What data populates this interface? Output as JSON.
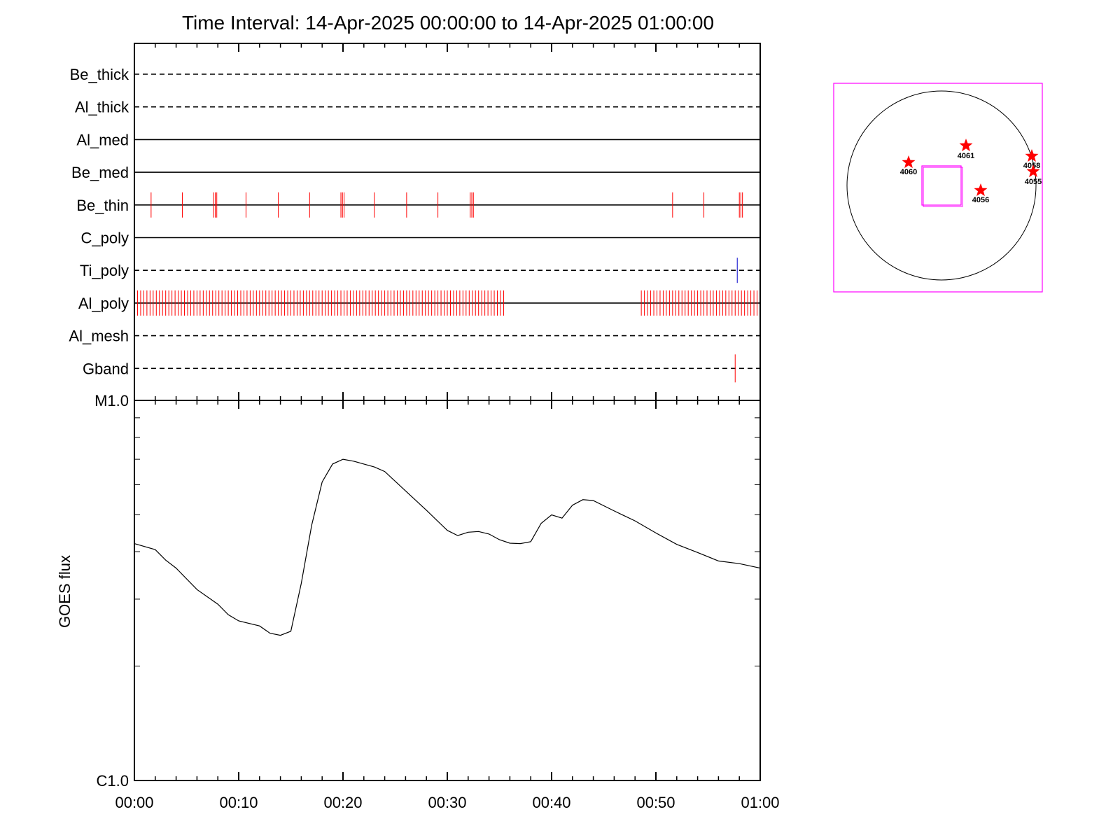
{
  "title": "Time Interval: 14-Apr-2025 00:00:00 to 14-Apr-2025 01:00:00",
  "chart_data": [
    {
      "type": "event-timeline",
      "x_range_minutes": [
        0,
        60
      ],
      "x_ticks": [
        "00:00",
        "00:10",
        "00:20",
        "00:30",
        "00:40",
        "00:50",
        "01:00"
      ],
      "rows": [
        {
          "label": "Be_thick",
          "style": "dashed",
          "events": [],
          "event_color": "#ff0000"
        },
        {
          "label": "Al_thick",
          "style": "dashed",
          "events": [],
          "event_color": "#ff0000"
        },
        {
          "label": "Al_med",
          "style": "solid",
          "events": [],
          "event_color": "#ff0000"
        },
        {
          "label": "Be_med",
          "style": "solid",
          "events": [],
          "event_color": "#ff0000"
        },
        {
          "label": "Be_thin",
          "style": "solid",
          "event_color": "#ff0000",
          "events": [
            1.6,
            4.6,
            7.6,
            7.75,
            7.9,
            10.7,
            13.8,
            16.8,
            19.8,
            19.95,
            20.1,
            23.0,
            26.1,
            29.1,
            32.2,
            32.35,
            32.5,
            51.6,
            54.6,
            58.0,
            58.15,
            58.3
          ]
        },
        {
          "label": "C_poly",
          "style": "solid",
          "events": [],
          "event_color": "#ff0000"
        },
        {
          "label": "Ti_poly",
          "style": "dashed",
          "event_color": "#0000cc",
          "events": [
            57.8
          ]
        },
        {
          "label": "Al_poly",
          "style": "solid",
          "event_color": "#ff0000",
          "events": [
            0.3,
            0.6,
            0.9,
            1.2,
            1.5,
            1.8,
            2.1,
            2.4,
            2.7,
            3.0,
            3.3,
            3.6,
            3.9,
            4.2,
            4.5,
            4.8,
            5.1,
            5.4,
            5.7,
            6.0,
            6.3,
            6.6,
            6.9,
            7.2,
            7.5,
            7.8,
            8.1,
            8.4,
            8.7,
            9.0,
            9.3,
            9.6,
            9.9,
            10.2,
            10.5,
            10.8,
            11.1,
            11.4,
            11.7,
            12.0,
            12.3,
            12.6,
            12.9,
            13.2,
            13.5,
            13.8,
            14.1,
            14.4,
            14.7,
            15.0,
            15.3,
            15.6,
            15.9,
            16.2,
            16.5,
            16.8,
            17.1,
            17.4,
            17.7,
            18.0,
            18.3,
            18.6,
            18.9,
            19.2,
            19.5,
            19.8,
            20.1,
            20.4,
            20.7,
            21.0,
            21.3,
            21.6,
            21.9,
            22.2,
            22.5,
            22.8,
            23.1,
            23.4,
            23.7,
            24.0,
            24.3,
            24.6,
            24.9,
            25.2,
            25.5,
            25.8,
            26.1,
            26.4,
            26.7,
            27.0,
            27.3,
            27.6,
            27.9,
            28.2,
            28.5,
            28.8,
            29.1,
            29.4,
            29.7,
            30.0,
            30.3,
            30.6,
            30.9,
            31.2,
            31.5,
            31.8,
            32.1,
            32.4,
            32.7,
            33.0,
            33.3,
            33.6,
            33.9,
            34.2,
            34.5,
            34.8,
            35.1,
            35.4,
            48.6,
            48.9,
            49.2,
            49.5,
            49.8,
            50.1,
            50.4,
            50.7,
            51.0,
            51.3,
            51.6,
            51.9,
            52.2,
            52.5,
            52.8,
            53.1,
            53.4,
            53.7,
            54.0,
            54.3,
            54.6,
            54.9,
            55.2,
            55.5,
            55.8,
            56.1,
            56.4,
            56.7,
            57.0,
            57.3,
            57.6,
            57.9,
            58.2,
            58.5,
            58.8,
            59.1,
            59.4,
            59.7
          ]
        },
        {
          "label": "Al_mesh",
          "style": "dashed",
          "events": [],
          "event_color": "#ff0000"
        },
        {
          "label": "Gband",
          "style": "dashed",
          "event_color": "#ff0000",
          "events": [
            57.6
          ]
        }
      ]
    },
    {
      "type": "line",
      "ylabel": "GOES flux",
      "y_scale": "log",
      "ylim": [
        1e-06,
        1e-05
      ],
      "y_tick_labels": [
        {
          "value": 1e-05,
          "label": "M1.0"
        },
        {
          "value": 1e-06,
          "label": "C1.0"
        }
      ],
      "x_range_minutes": [
        0,
        60
      ],
      "x_ticks": [
        "00:00",
        "00:10",
        "00:20",
        "00:30",
        "00:40",
        "00:50",
        "01:00"
      ],
      "series": [
        {
          "color": "#000000",
          "x": [
            0,
            2,
            3,
            4,
            6,
            8,
            9,
            10,
            12,
            13,
            14,
            15,
            16,
            17,
            18,
            19,
            20,
            21,
            22,
            23,
            24,
            26,
            28,
            30,
            31,
            32,
            33,
            34,
            35,
            36,
            37,
            38,
            39,
            40,
            41,
            42,
            43,
            44,
            46,
            48,
            50,
            52,
            54,
            56,
            58,
            60
          ],
          "y": [
            4.2e-06,
            4.05e-06,
            3.8e-06,
            3.62e-06,
            3.18e-06,
            2.91e-06,
            2.73e-06,
            2.63e-06,
            2.55e-06,
            2.44e-06,
            2.41e-06,
            2.47e-06,
            3.3e-06,
            4.7e-06,
            6.1e-06,
            6.8e-06,
            7e-06,
            6.92e-06,
            6.8e-06,
            6.68e-06,
            6.5e-06,
            5.78e-06,
            5.14e-06,
            4.55e-06,
            4.41e-06,
            4.5e-06,
            4.52e-06,
            4.45e-06,
            4.3e-06,
            4.21e-06,
            4.2e-06,
            4.25e-06,
            4.75e-06,
            5e-06,
            4.9e-06,
            5.3e-06,
            5.48e-06,
            5.45e-06,
            5.12e-06,
            4.82e-06,
            4.48e-06,
            4.18e-06,
            3.98e-06,
            3.78e-06,
            3.72e-06,
            3.62e-06
          ]
        }
      ]
    }
  ],
  "solar_map": {
    "box_color": "#ff00ff",
    "markers": [
      {
        "label": "4060",
        "color": "#ff0000"
      },
      {
        "label": "4061",
        "color": "#ff0000"
      },
      {
        "label": "4058",
        "color": "#ff0000"
      },
      {
        "label": "4055",
        "color": "#ff0000"
      },
      {
        "label": "4056",
        "color": "#ff0000"
      }
    ]
  }
}
